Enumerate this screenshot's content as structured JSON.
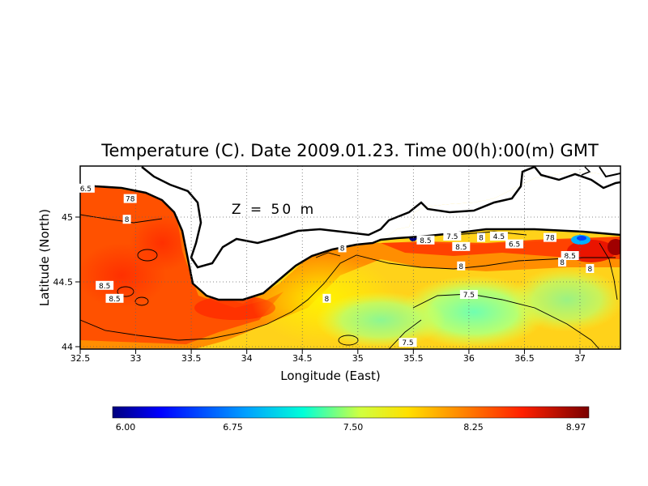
{
  "title": "Temperature (C). Date 2009.01.23. Time 00(h):00(m) GMT",
  "depth_label": "Z = 50 m",
  "xlabel": "Longitude (East)",
  "ylabel": "Latitude (North)",
  "x_ticks": [
    "32.5",
    "33",
    "33.5",
    "34",
    "34.5",
    "35",
    "35.5",
    "36",
    "36.5",
    "37"
  ],
  "y_ticks": [
    "44",
    "44.5",
    "45"
  ],
  "colorbar": {
    "min": 6.0,
    "max": 8.97,
    "tick_labels": [
      "6.00",
      "6.75",
      "7.50",
      "8.25",
      "8.97"
    ],
    "colors": [
      "#00007f",
      "#0000ff",
      "#00b4ff",
      "#00ffd0",
      "#e0ff40",
      "#ffd000",
      "#ff8000",
      "#ff2000",
      "#7f0000"
    ]
  },
  "contour_labels": [
    {
      "text": "6.5",
      "lon": 32.55,
      "lat": 45.22
    },
    {
      "text": "78",
      "lon": 32.95,
      "lat": 45.14
    },
    {
      "text": "8",
      "lon": 32.92,
      "lat": 44.98
    },
    {
      "text": "8.5",
      "lon": 32.72,
      "lat": 44.47
    },
    {
      "text": "8.5",
      "lon": 32.81,
      "lat": 44.37
    },
    {
      "text": "8",
      "lon": 34.72,
      "lat": 44.37
    },
    {
      "text": "8",
      "lon": 34.86,
      "lat": 44.76
    },
    {
      "text": "8.5",
      "lon": 35.61,
      "lat": 44.82
    },
    {
      "text": "7.5",
      "lon": 35.85,
      "lat": 44.85
    },
    {
      "text": "8.5",
      "lon": 35.93,
      "lat": 44.77
    },
    {
      "text": "8",
      "lon": 36.11,
      "lat": 44.84
    },
    {
      "text": "4.5",
      "lon": 36.27,
      "lat": 44.85
    },
    {
      "text": "6.5",
      "lon": 36.41,
      "lat": 44.79
    },
    {
      "text": "78",
      "lon": 36.73,
      "lat": 44.84
    },
    {
      "text": "8.5",
      "lon": 36.91,
      "lat": 44.7
    },
    {
      "text": "8",
      "lon": 36.84,
      "lat": 44.65
    },
    {
      "text": "8",
      "lon": 35.93,
      "lat": 44.62
    },
    {
      "text": "7.5",
      "lon": 36.0,
      "lat": 44.4
    },
    {
      "text": "7.5",
      "lon": 35.45,
      "lat": 44.03
    },
    {
      "text": "8",
      "lon": 37.09,
      "lat": 44.6
    }
  ]
}
